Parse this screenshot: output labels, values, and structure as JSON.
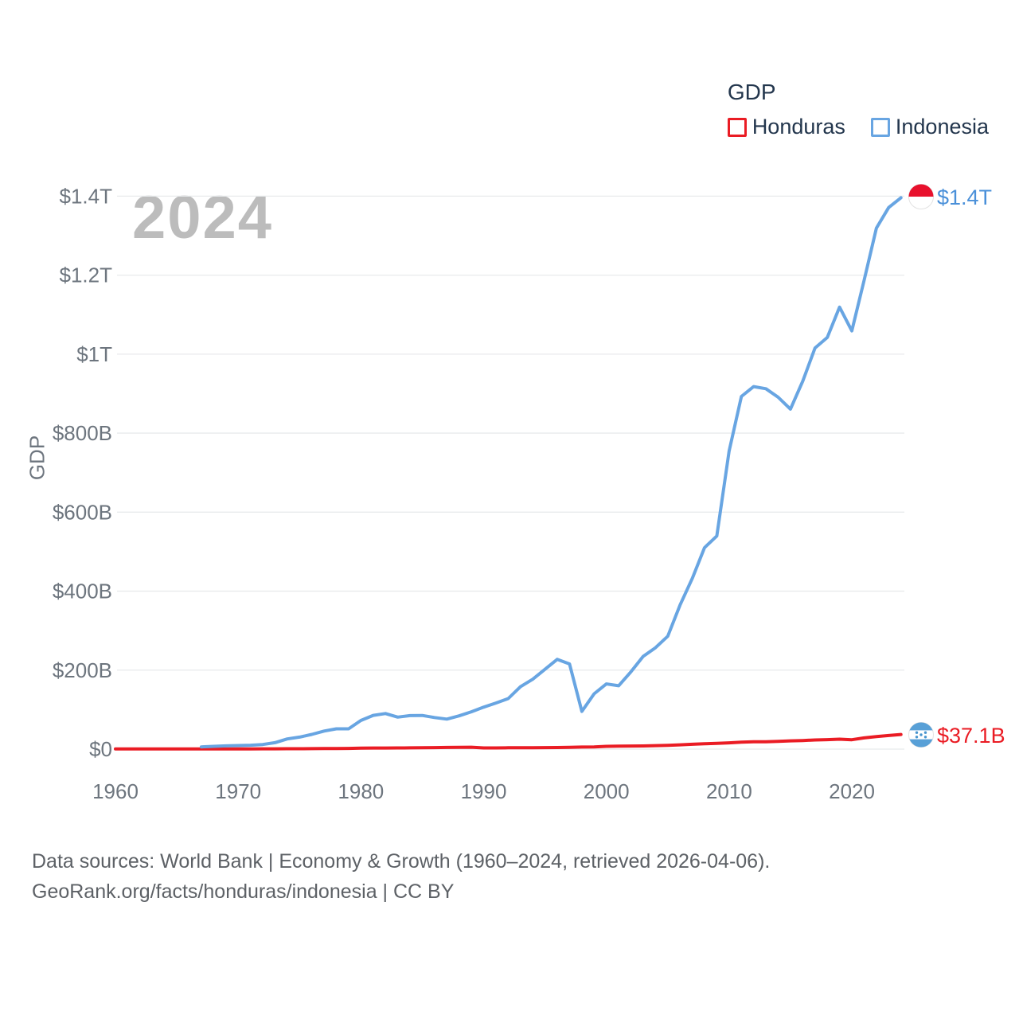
{
  "legend": {
    "title": "GDP"
  },
  "watermark": "2024",
  "y_axis": {
    "ticks": [
      {
        "label": "$0",
        "value": 0
      },
      {
        "label": "$200B",
        "value": 200
      },
      {
        "label": "$400B",
        "value": 400
      },
      {
        "label": "$600B",
        "value": 600
      },
      {
        "label": "$800B",
        "value": 800
      },
      {
        "label": "$1T",
        "value": 1000
      },
      {
        "label": "$1.2T",
        "value": 1200
      },
      {
        "label": "$1.4T",
        "value": 1400
      }
    ]
  },
  "x_axis": {
    "ticks": [
      {
        "label": "1960",
        "value": 1960
      },
      {
        "label": "1970",
        "value": 1970
      },
      {
        "label": "1980",
        "value": 1980
      },
      {
        "label": "1990",
        "value": 1990
      },
      {
        "label": "2000",
        "value": 2000
      },
      {
        "label": "2010",
        "value": 2010
      },
      {
        "label": "2020",
        "value": 2020
      }
    ]
  },
  "chart_data": {
    "type": "line",
    "title": "GDP",
    "ylabel": "GDP",
    "xlabel": "",
    "unit": "billion USD",
    "xlim": [
      1960,
      2024
    ],
    "ylim": [
      0,
      1400
    ],
    "grid": "horizontal",
    "legend_position": "top-right",
    "series": [
      {
        "name": "Honduras",
        "color": "#ea1c24",
        "start_year": 1960,
        "end_label": "$37.1B",
        "values": [
          0.34,
          0.36,
          0.39,
          0.41,
          0.46,
          0.51,
          0.55,
          0.57,
          0.62,
          0.67,
          0.65,
          0.68,
          0.73,
          0.83,
          0.94,
          1.02,
          1.16,
          1.42,
          1.67,
          1.91,
          2.57,
          2.8,
          2.9,
          3.07,
          3.28,
          3.64,
          3.81,
          4.14,
          4.53,
          4.9,
          3.05,
          3.07,
          3.42,
          3.5,
          3.43,
          3.91,
          4.1,
          4.66,
          5.2,
          5.37,
          7.1,
          7.57,
          7.77,
          8.14,
          8.77,
          9.67,
          10.84,
          12.28,
          13.79,
          14.59,
          15.84,
          17.73,
          18.53,
          18.5,
          19.76,
          20.98,
          21.72,
          23.14,
          24.07,
          25.1,
          23.83,
          28.49,
          31.72,
          34.4,
          37.1
        ]
      },
      {
        "name": "Indonesia",
        "color": "#68a5e2",
        "start_year": 1967,
        "end_label": "$1.4T",
        "values": [
          5.67,
          7.08,
          8.34,
          9.15,
          9.9,
          11.61,
          16.27,
          25.8,
          30.46,
          37.27,
          45.79,
          51.46,
          51.39,
          72.48,
          85.5,
          90.16,
          81.05,
          84.84,
          85.29,
          79.95,
          75.93,
          84.3,
          94.45,
          106.14,
          116.62,
          128.03,
          158.01,
          176.89,
          202.13,
          227.37,
          215.75,
          95.45,
          140.0,
          165.02,
          160.45,
          195.66,
          234.77,
          256.84,
          285.87,
          364.57,
          432.22,
          510.23,
          539.58,
          755.09,
          892.97,
          917.87,
          912.52,
          890.81,
          860.85,
          931.88,
          1015.62,
          1042.27,
          1119.1,
          1059.05,
          1186.51,
          1319.08,
          1371.17,
          1396.0
        ]
      }
    ]
  },
  "footer": {
    "line1": "Data sources: World Bank | Economy & Growth (1960–2024, retrieved 2026-04-06).",
    "line2": "GeoRank.org/facts/honduras/indonesia | CC BY"
  }
}
